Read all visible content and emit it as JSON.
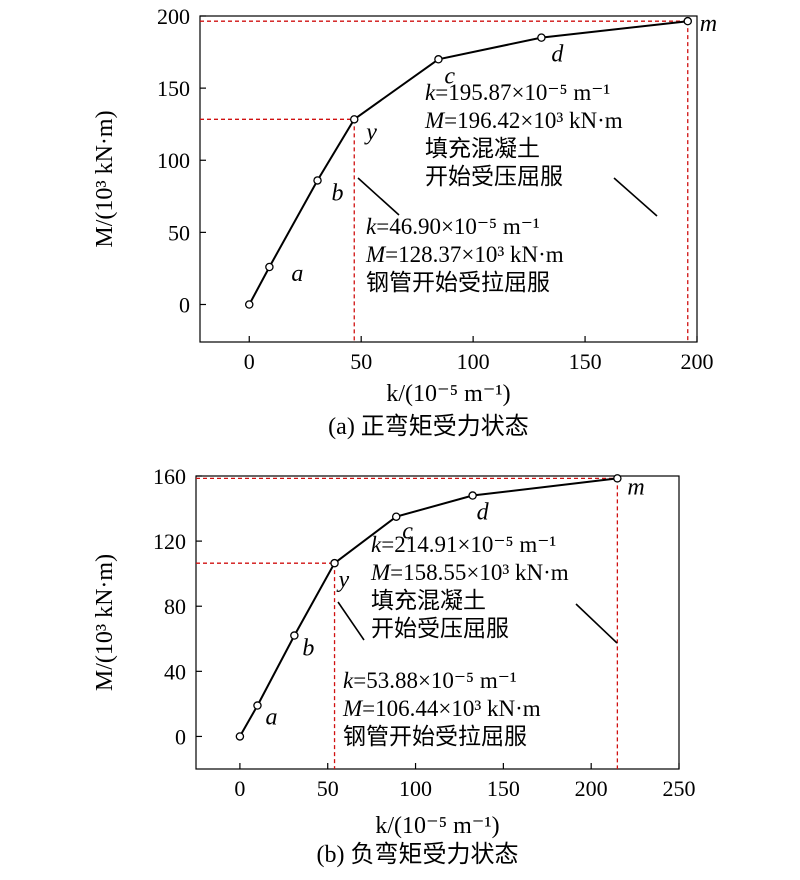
{
  "chart_data": [
    {
      "type": "line",
      "caption": "(a) 正弯矩受力状态",
      "xlabel": "k/(10⁻⁵ m⁻¹)",
      "ylabel": "M/(10³ kN·m)",
      "xlim": [
        -22,
        200
      ],
      "ylim": [
        -26,
        200
      ],
      "xticks": [
        0,
        50,
        100,
        150,
        200
      ],
      "yticks": [
        0,
        50,
        100,
        150,
        200
      ],
      "x": [
        0,
        9,
        30.5,
        46.9,
        84.5,
        130.5,
        195.87
      ],
      "y": [
        0,
        26,
        86,
        128.37,
        170,
        185,
        196.42
      ],
      "point_labels": [
        {
          "index": 1,
          "label": "a"
        },
        {
          "index": 2,
          "label": "b"
        },
        {
          "index": 3,
          "label": "y"
        },
        {
          "index": 4,
          "label": "c"
        },
        {
          "index": 5,
          "label": "d"
        },
        {
          "index": 6,
          "label": "m"
        }
      ],
      "annotations": [
        {
          "point": "m",
          "lines": [
            "k=195.87×10⁻⁵ m⁻¹",
            "M=196.42×10³ kN·m",
            "填充混凝土",
            "开始受压屈服"
          ]
        },
        {
          "point": "y",
          "lines": [
            "k=46.90×10⁻⁵ m⁻¹",
            "M=128.37×10³ kN·m",
            "钢管开始受拉屈服"
          ]
        }
      ],
      "grid": false,
      "line_color": "#000000",
      "guide_color": "#d01010"
    },
    {
      "type": "line",
      "caption": "(b) 负弯矩受力状态",
      "xlabel": "k/(10⁻⁵ m⁻¹)",
      "ylabel": "M/(10³ kN·m)",
      "xlim": [
        -25,
        250
      ],
      "ylim": [
        -20,
        160
      ],
      "xticks": [
        0,
        50,
        100,
        150,
        200,
        250
      ],
      "yticks": [
        0,
        40,
        80,
        120,
        160
      ],
      "x": [
        0,
        10,
        31,
        53.88,
        89,
        132.5,
        214.91
      ],
      "y": [
        0,
        19,
        62,
        106.44,
        135,
        148,
        158.55
      ],
      "point_labels": [
        {
          "index": 1,
          "label": "a"
        },
        {
          "index": 2,
          "label": "b"
        },
        {
          "index": 3,
          "label": "y"
        },
        {
          "index": 4,
          "label": "c"
        },
        {
          "index": 5,
          "label": "d"
        },
        {
          "index": 6,
          "label": "m"
        }
      ],
      "annotations": [
        {
          "point": "m",
          "lines": [
            "k=214.91×10⁻⁵ m⁻¹",
            "M=158.55×10³ kN·m",
            "填充混凝土",
            "开始受压屈服"
          ]
        },
        {
          "point": "y",
          "lines": [
            "k=53.88×10⁻⁵ m⁻¹",
            "M=106.44×10³ kN·m",
            "钢管开始受拉屈服"
          ]
        }
      ],
      "grid": false,
      "line_color": "#000000",
      "guide_color": "#d01010"
    }
  ]
}
